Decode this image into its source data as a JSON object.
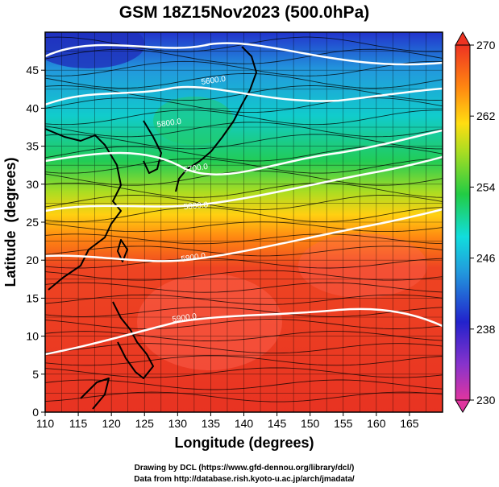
{
  "chart_data": {
    "type": "heatmap",
    "title": "GSM 18Z15Nov2023 (500.0hPa)",
    "xlabel": "Longitude (degrees)",
    "ylabel": "Latitude  (degrees)",
    "xlim": [
      110,
      170
    ],
    "ylim": [
      0,
      50
    ],
    "x_ticks": [
      110,
      115,
      120,
      125,
      130,
      135,
      140,
      145,
      150,
      155,
      160,
      165
    ],
    "y_ticks": [
      0,
      5,
      10,
      15,
      20,
      25,
      30,
      35,
      40,
      45
    ],
    "colorbar": {
      "range": [
        230,
        270
      ],
      "ticks": [
        270,
        262,
        254,
        246,
        238,
        230
      ],
      "colors": [
        "#e0359f",
        "#2222cc",
        "#2299dd",
        "#11dddd",
        "#22cc44",
        "#aadd22",
        "#ffdd11",
        "#ff8811",
        "#ee3322"
      ]
    },
    "contour_labels": [
      "5800.0",
      "5700.0",
      "5800.0",
      "5900.0",
      "5600.0",
      "5900.0"
    ],
    "overlays": [
      "coastlines",
      "streamlines"
    ]
  },
  "credits": {
    "line1": "Drawing by DCL (https://www.gfd-dennou.org/library/dcl/)",
    "line2": "Data from http://database.rish.kyoto-u.ac.jp/arch/jmadata/"
  }
}
